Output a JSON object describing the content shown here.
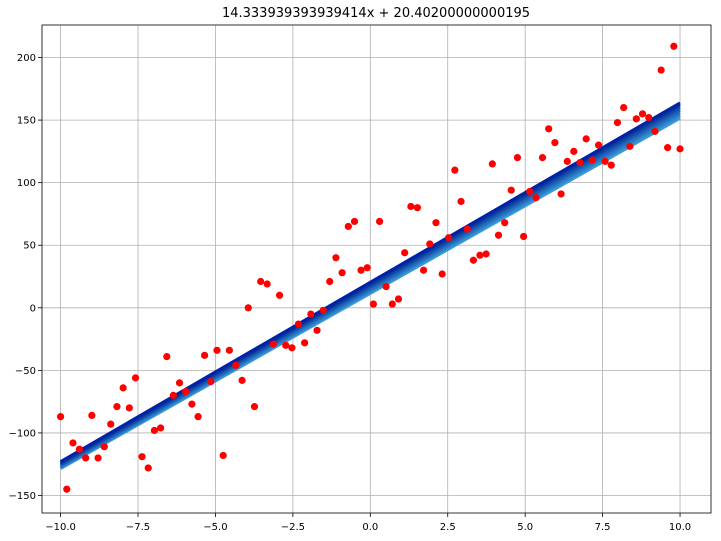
{
  "chart_data": {
    "type": "scatter",
    "title": "14.333939393939414x + 20.40200000000195",
    "xlabel": "",
    "ylabel": "",
    "xlim": [
      -10.6,
      11.0
    ],
    "ylim": [
      -164,
      226
    ],
    "grid": true,
    "x_ticks": [
      -10.0,
      -7.5,
      -5.0,
      -2.5,
      0.0,
      2.5,
      5.0,
      7.5,
      10.0
    ],
    "x_tick_labels": [
      "−10.0",
      "−7.5",
      "−5.0",
      "−2.5",
      "0.0",
      "2.5",
      "5.0",
      "7.5",
      "10.0"
    ],
    "y_ticks": [
      -150,
      -100,
      -50,
      0,
      50,
      100,
      150,
      200
    ],
    "y_tick_labels": [
      "−150",
      "−100",
      "−50",
      "0",
      "50",
      "100",
      "150",
      "200"
    ],
    "scatter_color": "#ff0000",
    "points": [
      {
        "x": -10.0,
        "y": -87
      },
      {
        "x": -9.8,
        "y": -145
      },
      {
        "x": -9.6,
        "y": -108
      },
      {
        "x": -9.39,
        "y": -113
      },
      {
        "x": -9.19,
        "y": -120
      },
      {
        "x": -8.99,
        "y": -86
      },
      {
        "x": -8.79,
        "y": -120
      },
      {
        "x": -8.59,
        "y": -111
      },
      {
        "x": -8.38,
        "y": -93
      },
      {
        "x": -8.18,
        "y": -79
      },
      {
        "x": -7.98,
        "y": -64
      },
      {
        "x": -7.78,
        "y": -80
      },
      {
        "x": -7.58,
        "y": -56
      },
      {
        "x": -7.37,
        "y": -119
      },
      {
        "x": -7.17,
        "y": -128
      },
      {
        "x": -6.97,
        "y": -98
      },
      {
        "x": -6.77,
        "y": -96
      },
      {
        "x": -6.57,
        "y": -39
      },
      {
        "x": -6.36,
        "y": -70
      },
      {
        "x": -6.16,
        "y": -60
      },
      {
        "x": -5.96,
        "y": -67
      },
      {
        "x": -5.76,
        "y": -77
      },
      {
        "x": -5.56,
        "y": -87
      },
      {
        "x": -5.35,
        "y": -38
      },
      {
        "x": -5.15,
        "y": -59
      },
      {
        "x": -4.95,
        "y": -34
      },
      {
        "x": -4.75,
        "y": -118
      },
      {
        "x": -4.55,
        "y": -34
      },
      {
        "x": -4.34,
        "y": -46
      },
      {
        "x": -4.14,
        "y": -58
      },
      {
        "x": -3.94,
        "y": 0
      },
      {
        "x": -3.74,
        "y": -79
      },
      {
        "x": -3.54,
        "y": 21
      },
      {
        "x": -3.33,
        "y": 19
      },
      {
        "x": -3.13,
        "y": -29
      },
      {
        "x": -2.93,
        "y": 10
      },
      {
        "x": -2.73,
        "y": -30
      },
      {
        "x": -2.53,
        "y": -32
      },
      {
        "x": -2.32,
        "y": -13
      },
      {
        "x": -2.12,
        "y": -28
      },
      {
        "x": -1.92,
        "y": -5
      },
      {
        "x": -1.72,
        "y": -18
      },
      {
        "x": -1.52,
        "y": -2
      },
      {
        "x": -1.31,
        "y": 21
      },
      {
        "x": -1.11,
        "y": 40
      },
      {
        "x": -0.91,
        "y": 28
      },
      {
        "x": -0.71,
        "y": 65
      },
      {
        "x": -0.51,
        "y": 69
      },
      {
        "x": -0.3,
        "y": 30
      },
      {
        "x": -0.1,
        "y": 32
      },
      {
        "x": 0.1,
        "y": 3
      },
      {
        "x": 0.3,
        "y": 69
      },
      {
        "x": 0.51,
        "y": 17
      },
      {
        "x": 0.71,
        "y": 3
      },
      {
        "x": 0.91,
        "y": 7
      },
      {
        "x": 1.11,
        "y": 44
      },
      {
        "x": 1.31,
        "y": 81
      },
      {
        "x": 1.52,
        "y": 80
      },
      {
        "x": 1.72,
        "y": 30
      },
      {
        "x": 1.92,
        "y": 51
      },
      {
        "x": 2.12,
        "y": 68
      },
      {
        "x": 2.32,
        "y": 27
      },
      {
        "x": 2.53,
        "y": 56
      },
      {
        "x": 2.73,
        "y": 110
      },
      {
        "x": 2.93,
        "y": 85
      },
      {
        "x": 3.13,
        "y": 63
      },
      {
        "x": 3.33,
        "y": 38
      },
      {
        "x": 3.54,
        "y": 42
      },
      {
        "x": 3.74,
        "y": 43
      },
      {
        "x": 3.94,
        "y": 115
      },
      {
        "x": 4.14,
        "y": 58
      },
      {
        "x": 4.34,
        "y": 68
      },
      {
        "x": 4.55,
        "y": 94
      },
      {
        "x": 4.75,
        "y": 120
      },
      {
        "x": 4.95,
        "y": 57
      },
      {
        "x": 5.15,
        "y": 93
      },
      {
        "x": 5.35,
        "y": 88
      },
      {
        "x": 5.56,
        "y": 120
      },
      {
        "x": 5.76,
        "y": 143
      },
      {
        "x": 5.96,
        "y": 132
      },
      {
        "x": 6.16,
        "y": 91
      },
      {
        "x": 6.36,
        "y": 117
      },
      {
        "x": 6.57,
        "y": 125
      },
      {
        "x": 6.77,
        "y": 116
      },
      {
        "x": 6.97,
        "y": 135
      },
      {
        "x": 7.17,
        "y": 118
      },
      {
        "x": 7.37,
        "y": 130
      },
      {
        "x": 7.58,
        "y": 117
      },
      {
        "x": 7.78,
        "y": 114
      },
      {
        "x": 7.98,
        "y": 148
      },
      {
        "x": 8.18,
        "y": 160
      },
      {
        "x": 8.38,
        "y": 129
      },
      {
        "x": 8.59,
        "y": 151
      },
      {
        "x": 8.79,
        "y": 155
      },
      {
        "x": 8.99,
        "y": 152
      },
      {
        "x": 9.19,
        "y": 141
      },
      {
        "x": 9.39,
        "y": 190
      },
      {
        "x": 9.6,
        "y": 128
      },
      {
        "x": 9.8,
        "y": 209
      },
      {
        "x": 10.0,
        "y": 127
      }
    ],
    "fit_lines": [
      {
        "slope": 14.0,
        "intercept": 11.5,
        "color": "#3a9ad8"
      },
      {
        "slope": 14.07,
        "intercept": 13.0,
        "color": "#2f86cc"
      },
      {
        "slope": 14.13,
        "intercept": 14.5,
        "color": "#2572bf"
      },
      {
        "slope": 14.19,
        "intercept": 16.0,
        "color": "#1b5eb3"
      },
      {
        "slope": 14.25,
        "intercept": 17.5,
        "color": "#124aa7"
      },
      {
        "slope": 14.3,
        "intercept": 19.0,
        "color": "#09369c"
      },
      {
        "slope": 14.333939393939414,
        "intercept": 20.40200000000195,
        "color": "#0022a8"
      }
    ]
  }
}
